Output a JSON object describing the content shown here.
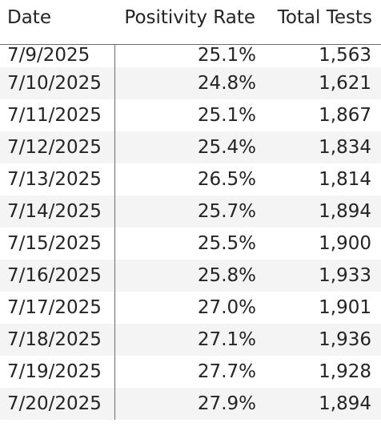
{
  "table": {
    "columns": [
      "Date",
      "Positivity Rate",
      "Total Tests"
    ],
    "rows": [
      {
        "date": "7/9/2025",
        "rate": "25.1%",
        "tests": "1,563"
      },
      {
        "date": "7/10/2025",
        "rate": "24.8%",
        "tests": "1,621"
      },
      {
        "date": "7/11/2025",
        "rate": "25.1%",
        "tests": "1,867"
      },
      {
        "date": "7/12/2025",
        "rate": "25.4%",
        "tests": "1,834"
      },
      {
        "date": "7/13/2025",
        "rate": "26.5%",
        "tests": "1,814"
      },
      {
        "date": "7/14/2025",
        "rate": "25.7%",
        "tests": "1,894"
      },
      {
        "date": "7/15/2025",
        "rate": "25.5%",
        "tests": "1,900"
      },
      {
        "date": "7/16/2025",
        "rate": "25.8%",
        "tests": "1,933"
      },
      {
        "date": "7/17/2025",
        "rate": "27.0%",
        "tests": "1,901"
      },
      {
        "date": "7/18/2025",
        "rate": "27.1%",
        "tests": "1,936"
      },
      {
        "date": "7/19/2025",
        "rate": "27.7%",
        "tests": "1,928"
      },
      {
        "date": "7/20/2025",
        "rate": "27.9%",
        "tests": "1,894"
      }
    ]
  },
  "colors": {
    "text": "#252423",
    "stripe": "#f4f4f4",
    "rule": "#6b6b6b"
  }
}
